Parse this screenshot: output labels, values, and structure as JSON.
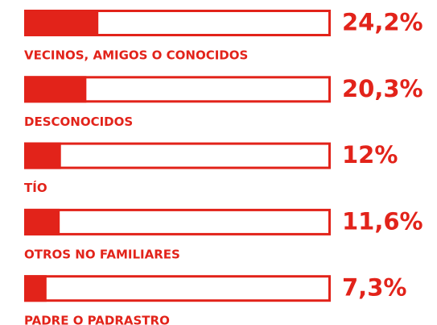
{
  "chart_data": {
    "type": "bar",
    "orientation": "horizontal",
    "categories": [
      "VECINOS, AMIGOS O CONOCIDOS",
      "DESCONOCIDOS",
      "TÍO",
      "OTROS NO FAMILIARES",
      "PADRE O PADRASTRO"
    ],
    "values": [
      24.2,
      20.3,
      12,
      11.6,
      7.3
    ],
    "value_labels": [
      "24,2%",
      "20,3%",
      "12%",
      "11,6%",
      "7,3%"
    ],
    "color": "#e2231a",
    "xlim": [
      0,
      100
    ]
  }
}
